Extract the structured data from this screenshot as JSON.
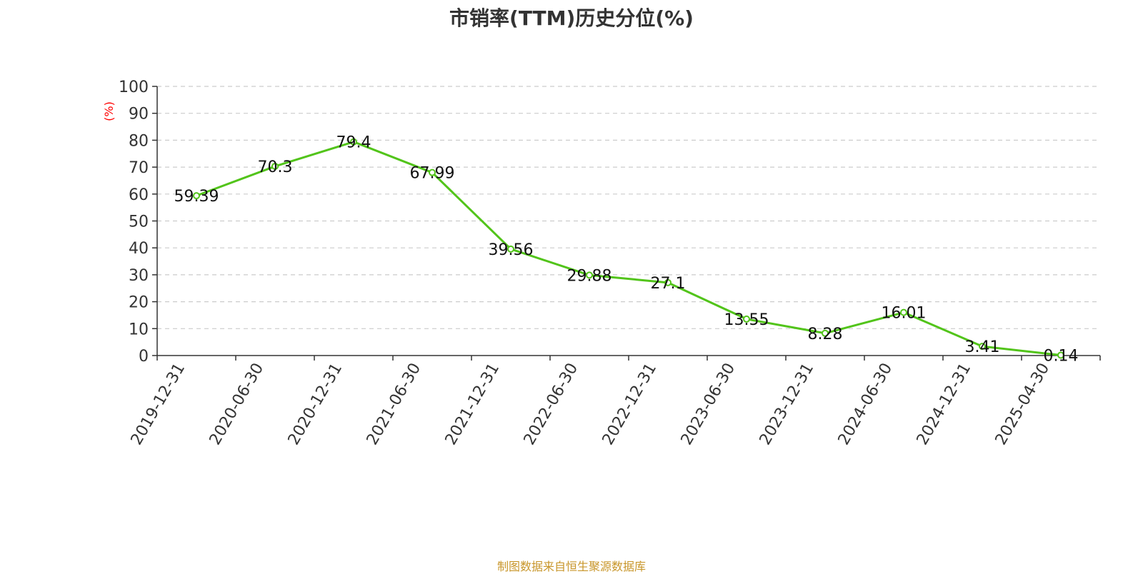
{
  "chart_data": {
    "type": "line",
    "title": "市销率(TTM)历史分位(%)",
    "ylabel": "(%)",
    "xlabel": "",
    "ylim": [
      0,
      100
    ],
    "yticks": [
      0,
      10,
      20,
      30,
      40,
      50,
      60,
      70,
      80,
      90,
      100
    ],
    "grid": true,
    "categories": [
      "2019-12-31",
      "2020-06-30",
      "2020-12-31",
      "2021-06-30",
      "2021-12-31",
      "2022-06-30",
      "2022-12-31",
      "2023-06-30",
      "2023-12-31",
      "2024-06-30",
      "2024-12-31",
      "2025-04-30"
    ],
    "series": [
      {
        "values": [
          59.39,
          70.3,
          79.4,
          67.99,
          39.56,
          29.88,
          27.1,
          13.55,
          8.28,
          16.01,
          3.41,
          0.14
        ],
        "labels": [
          "59.39",
          "70.3",
          "79.4",
          "67.99",
          "39.56",
          "29.88",
          "27.1",
          "13.55",
          "8.28",
          "16.01",
          "3.41",
          "0.14"
        ],
        "color": "#52c41a"
      }
    ],
    "colors": {
      "line": "#52c41a",
      "grid": "#cccccc",
      "axis": "#333333",
      "ylabel": "#ff0000",
      "source": "#c8962a"
    }
  },
  "source_note": "制图数据来自恒生聚源数据库"
}
